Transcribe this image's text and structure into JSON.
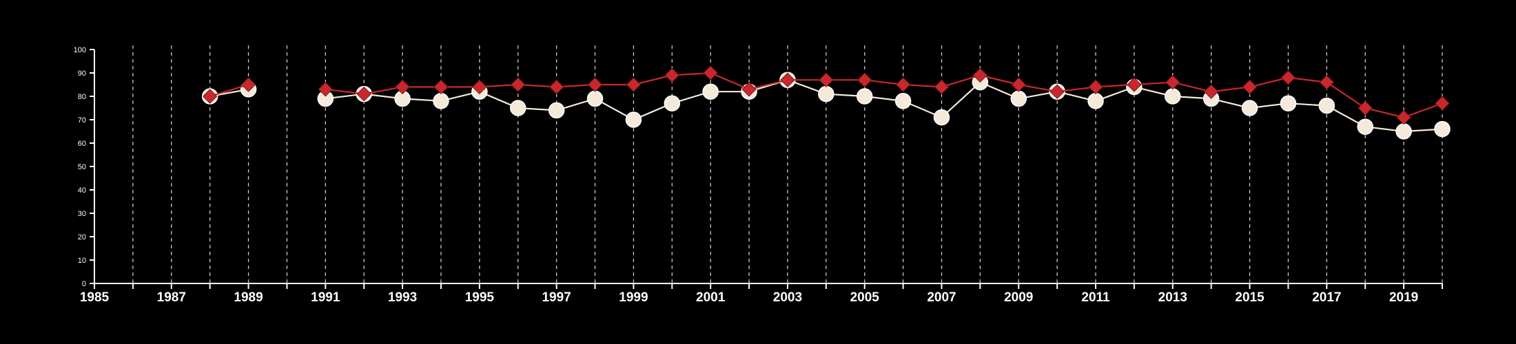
{
  "chart_data": {
    "type": "line",
    "title": "",
    "xlabel": "",
    "ylabel": "",
    "xlim": [
      1985,
      2020
    ],
    "ylim": [
      0,
      100
    ],
    "x_ticks": [
      "1985",
      "1987",
      "1989",
      "1991",
      "1993",
      "1995",
      "1997",
      "1999",
      "2001",
      "2003",
      "2005",
      "2007",
      "2009",
      "2011",
      "2013",
      "2015",
      "2017",
      "2019"
    ],
    "y_ticks": [
      "0",
      "10",
      "20",
      "30",
      "40",
      "50",
      "60",
      "70",
      "80",
      "90",
      "100"
    ],
    "grid": "vertical dashed lines at each year",
    "legend": "none",
    "x": [
      1988,
      1989,
      1990,
      1991,
      1992,
      1993,
      1994,
      1995,
      1996,
      1997,
      1998,
      1999,
      2000,
      2001,
      2002,
      2003,
      2004,
      2005,
      2006,
      2007,
      2008,
      2009,
      2010,
      2011,
      2012,
      2013,
      2014,
      2015,
      2016,
      2017,
      2018,
      2019,
      2020
    ],
    "series": [
      {
        "color": "#c8282d",
        "marker": "diamond",
        "values": [
          80,
          85,
          null,
          83,
          81,
          84,
          84,
          84,
          85,
          84,
          85,
          85,
          89,
          90,
          83,
          87,
          87,
          87,
          85,
          84,
          89,
          85,
          82,
          84,
          85,
          86,
          82,
          84,
          88,
          86,
          75,
          71,
          77
        ]
      },
      {
        "color": "#f5e9d9",
        "marker": "circle",
        "values": [
          80,
          83,
          null,
          79,
          81,
          79,
          78,
          82,
          75,
          74,
          79,
          70,
          77,
          82,
          82,
          87,
          81,
          80,
          78,
          71,
          86,
          79,
          82,
          78,
          84,
          80,
          79,
          75,
          77,
          76,
          67,
          65,
          66
        ]
      }
    ]
  }
}
